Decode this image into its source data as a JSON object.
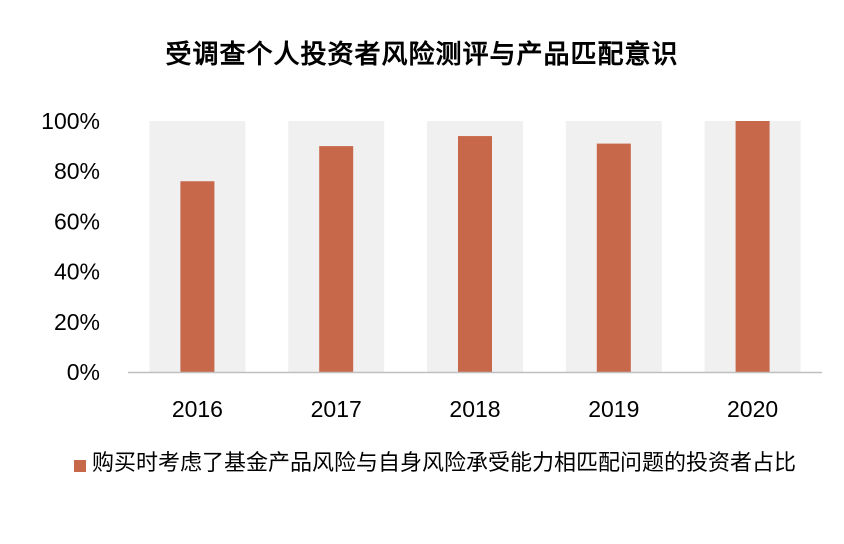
{
  "chart_data": {
    "type": "bar",
    "title": "受调查个人投资者风险测评与产品匹配意识",
    "categories": [
      "2016",
      "2017",
      "2018",
      "2019",
      "2020"
    ],
    "series": [
      {
        "name": "购买时考虑了基金产品风险与自身风险承受能力相匹配问题的投资者占比",
        "values": [
          76,
          90,
          94,
          91,
          100
        ]
      }
    ],
    "ylim": [
      0,
      100
    ],
    "yticks": [
      "0%",
      "20%",
      "40%",
      "60%",
      "80%",
      "100%"
    ],
    "xlabel": "",
    "ylabel": "",
    "legend_position": "bottom",
    "colors": {
      "bar": "#c8684b",
      "band": "#f0f0f0",
      "axis": "#bfbfbf"
    }
  }
}
